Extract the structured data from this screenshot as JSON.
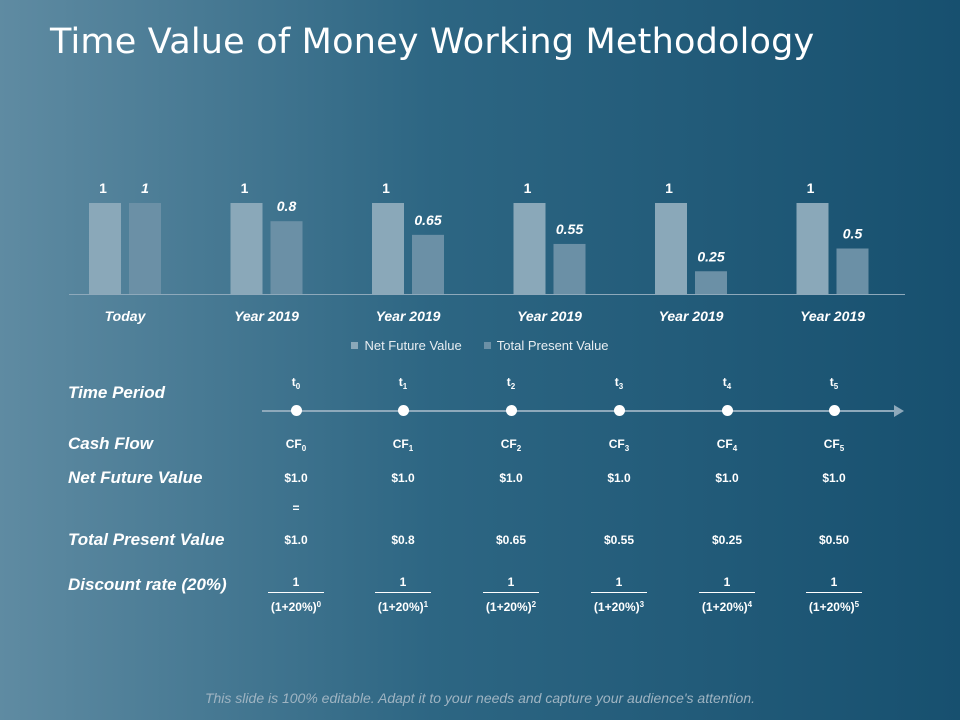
{
  "title": "Time Value of Money Working Methodology",
  "chart_data": {
    "type": "bar",
    "categories": [
      "Today",
      "Year 2019",
      "Year 2019",
      "Year 2019",
      "Year 2019",
      "Year 2019"
    ],
    "series": [
      {
        "name": "Net Future Value",
        "values": [
          1,
          1,
          1,
          1,
          1,
          1
        ],
        "labels": [
          "1",
          "1",
          "1",
          "1",
          "1",
          "1"
        ],
        "color": "#8aa8b9"
      },
      {
        "name": "Total Present Value",
        "values": [
          1,
          0.8,
          0.65,
          0.55,
          0.25,
          0.5
        ],
        "labels": [
          "1",
          "0.8",
          "0.65",
          "0.55",
          "0.25",
          "0.5"
        ],
        "color": "#6b90a6"
      }
    ],
    "ylim": [
      0,
      1
    ],
    "grid": false,
    "legend": "bottom"
  },
  "table": {
    "labels": {
      "time_period": "Time Period",
      "cash_flow": "Cash Flow",
      "net_future_value": "Net Future Value",
      "total_present_value": "Total Present Value",
      "discount_rate": "Discount rate (20%)"
    },
    "time_symbol": "t",
    "cash_flow_symbol": "CF",
    "subscripts": [
      "0",
      "1",
      "2",
      "3",
      "4",
      "5"
    ],
    "net_future_values": [
      "$1.0",
      "$1.0",
      "$1.0",
      "$1.0",
      "$1.0",
      "$1.0"
    ],
    "equals": "=",
    "present_values": [
      "$1.0",
      "$0.8",
      "$0.65",
      "$0.55",
      "$0.25",
      "$0.50"
    ],
    "discount_numerator": "1",
    "discount_base": "(1+20%)",
    "discount_exponents": [
      "0",
      "1",
      "2",
      "3",
      "4",
      "5"
    ]
  },
  "footer": "This slide is 100% editable. Adapt it to your needs and capture your audience's attention."
}
